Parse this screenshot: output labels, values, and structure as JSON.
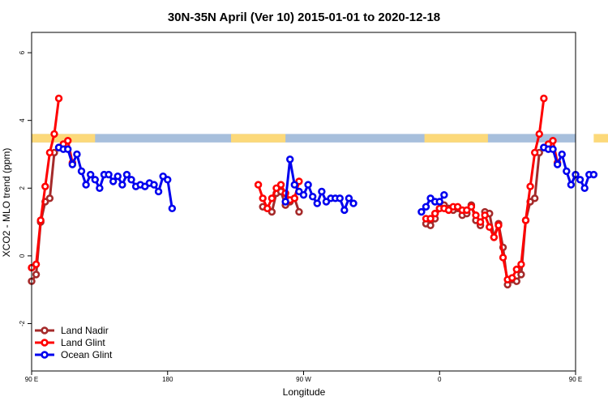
{
  "chart_data": {
    "type": "line",
    "title": "30N-35N April (Ver 10)   2015-01-01 to 2020-12-18",
    "xlabel": "Longitude",
    "ylabel": "XCO2 - MLO trend (ppm)",
    "xlim": [
      90,
      450
    ],
    "ylim": [
      -3.4,
      6.6
    ],
    "x_ticks": [
      {
        "value": 90,
        "label": "90 E"
      },
      {
        "value": 180,
        "label": "180"
      },
      {
        "value": 270,
        "label": "90 W"
      },
      {
        "value": 360,
        "label": "0"
      },
      {
        "value": 450,
        "label": "90 E"
      },
      {
        "value": 540,
        "label": "180"
      }
    ],
    "y_ticks": [
      -2,
      0,
      2,
      4,
      6
    ],
    "land_band": {
      "y_range": [
        3.35,
        3.6
      ],
      "land_color": "#fcd97a",
      "ocean_color": "#a7bfdc",
      "land_segments": [
        [
          90,
          132
        ],
        [
          222,
          258
        ],
        [
          350,
          392
        ],
        [
          462,
          504
        ]
      ]
    },
    "legend": {
      "position": "bottom-left"
    },
    "series": [
      {
        "name": "Land Nadir",
        "color": "#a52a2a",
        "segments": [
          [
            [
              90,
              -0.75
            ],
            [
              93,
              -0.55
            ],
            [
              96,
              1.0
            ],
            [
              99,
              1.6
            ],
            [
              102,
              1.7
            ],
            [
              105,
              3.05
            ],
            [
              108,
              3.2
            ]
          ],
          [
            [
              243,
              1.45
            ],
            [
              246,
              1.4
            ],
            [
              249,
              1.3
            ],
            [
              252,
              1.85
            ],
            [
              255,
              1.9
            ],
            [
              258,
              1.5
            ],
            [
              261,
              1.6
            ],
            [
              264,
              1.7
            ],
            [
              267,
              1.3
            ]
          ],
          [
            [
              351,
              0.95
            ],
            [
              354,
              0.9
            ],
            [
              357,
              1.1
            ],
            [
              360,
              1.4
            ],
            [
              363,
              1.5
            ],
            [
              366,
              1.4
            ],
            [
              369,
              1.35
            ],
            [
              372,
              1.4
            ],
            [
              375,
              1.2
            ],
            [
              378,
              1.25
            ],
            [
              381,
              1.5
            ],
            [
              384,
              1.05
            ],
            [
              387,
              0.9
            ],
            [
              390,
              1.3
            ],
            [
              393,
              1.25
            ],
            [
              396,
              0.55
            ],
            [
              399,
              0.95
            ],
            [
              402,
              0.25
            ],
            [
              405,
              -0.85
            ],
            [
              408,
              -0.7
            ],
            [
              411,
              -0.75
            ],
            [
              414,
              -0.55
            ],
            [
              417,
              1.05
            ],
            [
              420,
              1.6
            ],
            [
              423,
              1.7
            ],
            [
              426,
              3.05
            ],
            [
              429,
              3.2
            ]
          ]
        ]
      },
      {
        "name": "Land Glint",
        "color": "#ff0000",
        "segments": [
          [
            [
              90,
              -0.35
            ],
            [
              93,
              -0.25
            ],
            [
              96,
              1.05
            ],
            [
              99,
              2.05
            ],
            [
              102,
              3.05
            ],
            [
              105,
              3.6
            ],
            [
              108,
              4.65
            ]
          ],
          [
            [
              111,
              3.3
            ],
            [
              114,
              3.4
            ],
            [
              117,
              2.75
            ]
          ],
          [
            [
              240,
              2.1
            ],
            [
              243,
              1.7
            ],
            [
              246,
              1.4
            ],
            [
              249,
              1.7
            ],
            [
              252,
              2.0
            ],
            [
              255,
              2.1
            ],
            [
              258,
              1.85
            ],
            [
              261,
              1.65
            ],
            [
              264,
              1.7
            ],
            [
              267,
              2.2
            ]
          ],
          [
            [
              351,
              1.1
            ],
            [
              354,
              1.1
            ],
            [
              357,
              1.25
            ],
            [
              360,
              1.4
            ],
            [
              363,
              1.4
            ],
            [
              366,
              1.35
            ],
            [
              369,
              1.45
            ],
            [
              372,
              1.45
            ],
            [
              375,
              1.35
            ],
            [
              378,
              1.35
            ],
            [
              381,
              1.45
            ],
            [
              384,
              1.2
            ],
            [
              387,
              1.0
            ],
            [
              390,
              1.2
            ],
            [
              393,
              0.85
            ],
            [
              396,
              0.55
            ],
            [
              399,
              0.9
            ],
            [
              402,
              -0.05
            ],
            [
              405,
              -0.7
            ],
            [
              408,
              -0.65
            ],
            [
              411,
              -0.4
            ],
            [
              414,
              -0.25
            ],
            [
              417,
              1.05
            ],
            [
              420,
              2.05
            ],
            [
              423,
              3.05
            ],
            [
              426,
              3.6
            ],
            [
              429,
              4.65
            ]
          ],
          [
            [
              432,
              3.3
            ],
            [
              435,
              3.4
            ],
            [
              438,
              2.75
            ]
          ]
        ]
      },
      {
        "name": "Ocean Glint",
        "color": "#0000ee",
        "segments": [
          [
            [
              108,
              3.2
            ],
            [
              111,
              3.15
            ],
            [
              114,
              3.15
            ],
            [
              117,
              2.7
            ],
            [
              120,
              3.0
            ],
            [
              123,
              2.5
            ],
            [
              126,
              2.1
            ],
            [
              129,
              2.4
            ],
            [
              132,
              2.25
            ],
            [
              135,
              2.0
            ],
            [
              138,
              2.4
            ],
            [
              141,
              2.4
            ],
            [
              144,
              2.2
            ],
            [
              147,
              2.35
            ],
            [
              150,
              2.1
            ],
            [
              153,
              2.4
            ],
            [
              156,
              2.25
            ],
            [
              159,
              2.05
            ],
            [
              162,
              2.1
            ],
            [
              165,
              2.05
            ],
            [
              168,
              2.15
            ],
            [
              171,
              2.1
            ],
            [
              174,
              1.9
            ],
            [
              177,
              2.35
            ],
            [
              180,
              2.25
            ],
            [
              183,
              1.4
            ]
          ],
          [
            [
              258,
              1.6
            ],
            [
              261,
              2.85
            ],
            [
              264,
              2.1
            ],
            [
              267,
              1.9
            ],
            [
              270,
              1.8
            ],
            [
              273,
              2.1
            ],
            [
              276,
              1.75
            ],
            [
              279,
              1.55
            ],
            [
              282,
              1.9
            ],
            [
              285,
              1.6
            ],
            [
              288,
              1.7
            ],
            [
              291,
              1.7
            ],
            [
              294,
              1.7
            ],
            [
              297,
              1.35
            ],
            [
              300,
              1.7
            ],
            [
              303,
              1.55
            ]
          ],
          [
            [
              348,
              1.3
            ],
            [
              351,
              1.45
            ],
            [
              354,
              1.7
            ],
            [
              357,
              1.6
            ],
            [
              360,
              1.6
            ],
            [
              363,
              1.8
            ]
          ],
          [
            [
              429,
              3.2
            ],
            [
              432,
              3.15
            ],
            [
              435,
              3.15
            ],
            [
              438,
              2.7
            ],
            [
              441,
              3.0
            ],
            [
              444,
              2.5
            ],
            [
              447,
              2.1
            ],
            [
              450,
              2.4
            ],
            [
              453,
              2.25
            ],
            [
              456,
              2.0
            ],
            [
              459,
              2.4
            ],
            [
              462,
              2.4
            ]
          ]
        ]
      }
    ]
  }
}
